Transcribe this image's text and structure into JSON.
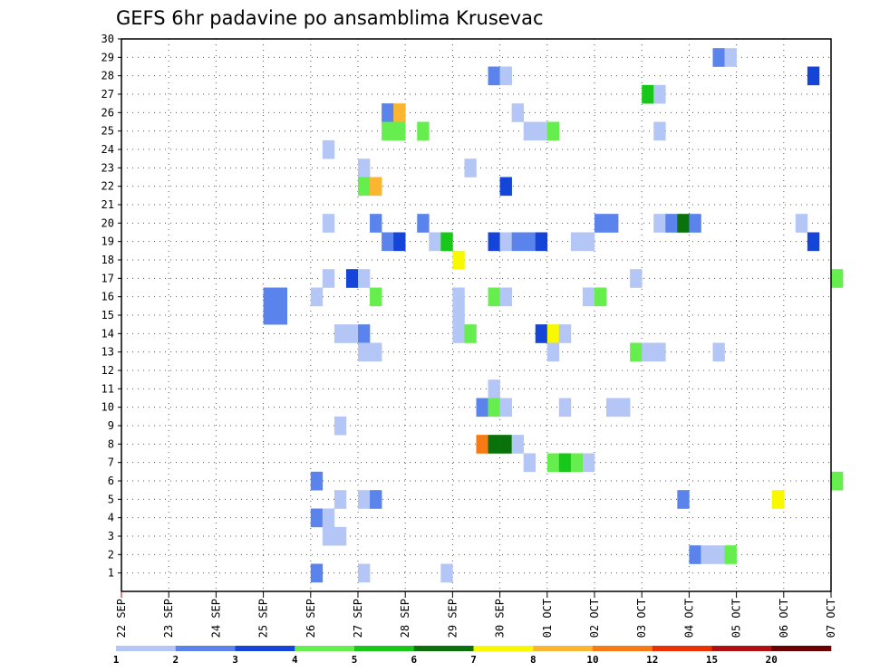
{
  "chart_data": {
    "type": "heatmap",
    "title": "GEFS 6hr padavine po ansamblima Krusevac",
    "xlabel": "",
    "ylabel": "",
    "x_range_hours": [
      0,
      360
    ],
    "x_ticks": [
      {
        "hour": 0,
        "label": "22 SEP"
      },
      {
        "hour": 24,
        "label": "23 SEP"
      },
      {
        "hour": 48,
        "label": "24 SEP"
      },
      {
        "hour": 72,
        "label": "25 SEP"
      },
      {
        "hour": 96,
        "label": "26 SEP"
      },
      {
        "hour": 120,
        "label": "27 SEP"
      },
      {
        "hour": 144,
        "label": "28 SEP"
      },
      {
        "hour": 168,
        "label": "29 SEP"
      },
      {
        "hour": 192,
        "label": "30 SEP"
      },
      {
        "hour": 216,
        "label": "01 OCT"
      },
      {
        "hour": 240,
        "label": "02 OCT"
      },
      {
        "hour": 264,
        "label": "03 OCT"
      },
      {
        "hour": 288,
        "label": "04 OCT"
      },
      {
        "hour": 312,
        "label": "05 OCT"
      },
      {
        "hour": 336,
        "label": "06 OCT"
      },
      {
        "hour": 360,
        "label": "07 OCT"
      }
    ],
    "y_range": [
      0,
      30
    ],
    "y_ticks": [
      "1",
      "2",
      "3",
      "4",
      "5",
      "6",
      "7",
      "8",
      "9",
      "10",
      "11",
      "12",
      "13",
      "14",
      "15",
      "16",
      "17",
      "18",
      "19",
      "20",
      "21",
      "22",
      "23",
      "24",
      "25",
      "26",
      "27",
      "28",
      "29",
      "30"
    ],
    "grid": true,
    "legend": {
      "placement": "bottom",
      "bins": [
        {
          "label": "1",
          "color": "#b4c6f5"
        },
        {
          "label": "2",
          "color": "#5a84ec"
        },
        {
          "label": "3",
          "color": "#1444d8"
        },
        {
          "label": "4",
          "color": "#66ee4e"
        },
        {
          "label": "5",
          "color": "#18c818"
        },
        {
          "label": "6",
          "color": "#0a720a"
        },
        {
          "label": "7",
          "color": "#f8f800"
        },
        {
          "label": "8",
          "color": "#fbb530"
        },
        {
          "label": "10",
          "color": "#f87a14"
        },
        {
          "label": "12",
          "color": "#ec3000"
        },
        {
          "label": "15",
          "color": "#b01010"
        },
        {
          "label": "20",
          "color": "#6a0000"
        }
      ]
    },
    "cells_hours_member_binindex": [
      [
        300,
        29,
        1
      ],
      [
        306,
        29,
        0
      ],
      [
        186,
        28,
        1
      ],
      [
        192,
        28,
        0
      ],
      [
        348,
        28,
        2
      ],
      [
        264,
        27,
        4
      ],
      [
        270,
        27,
        0
      ],
      [
        132,
        26,
        1
      ],
      [
        138,
        26,
        7
      ],
      [
        198,
        26,
        0
      ],
      [
        132,
        25,
        3
      ],
      [
        138,
        25,
        3
      ],
      [
        150,
        25,
        3
      ],
      [
        204,
        25,
        0
      ],
      [
        210,
        25,
        0
      ],
      [
        216,
        25,
        3
      ],
      [
        270,
        25,
        0
      ],
      [
        102,
        24,
        0
      ],
      [
        120,
        23,
        0
      ],
      [
        174,
        23,
        0
      ],
      [
        120,
        22,
        3
      ],
      [
        126,
        22,
        7
      ],
      [
        192,
        22,
        2
      ],
      [
        102,
        20,
        0
      ],
      [
        126,
        20,
        1
      ],
      [
        150,
        20,
        1
      ],
      [
        240,
        20,
        1
      ],
      [
        246,
        20,
        1
      ],
      [
        270,
        20,
        0
      ],
      [
        276,
        20,
        1
      ],
      [
        282,
        20,
        5
      ],
      [
        288,
        20,
        1
      ],
      [
        342,
        20,
        0
      ],
      [
        132,
        19,
        1
      ],
      [
        138,
        19,
        2
      ],
      [
        156,
        19,
        0
      ],
      [
        162,
        19,
        4
      ],
      [
        186,
        19,
        2
      ],
      [
        192,
        19,
        0
      ],
      [
        198,
        19,
        1
      ],
      [
        204,
        19,
        1
      ],
      [
        210,
        19,
        2
      ],
      [
        228,
        19,
        0
      ],
      [
        234,
        19,
        0
      ],
      [
        348,
        19,
        2
      ],
      [
        168,
        18,
        6
      ],
      [
        102,
        17,
        0
      ],
      [
        114,
        17,
        2
      ],
      [
        120,
        17,
        0
      ],
      [
        258,
        17,
        0
      ],
      [
        360,
        17,
        3
      ],
      [
        72,
        16,
        1
      ],
      [
        78,
        16,
        1
      ],
      [
        96,
        16,
        0
      ],
      [
        126,
        16,
        3
      ],
      [
        168,
        16,
        0
      ],
      [
        186,
        16,
        3
      ],
      [
        192,
        16,
        0
      ],
      [
        234,
        16,
        0
      ],
      [
        240,
        16,
        3
      ],
      [
        72,
        15,
        1
      ],
      [
        78,
        15,
        1
      ],
      [
        168,
        15,
        0
      ],
      [
        108,
        14,
        0
      ],
      [
        114,
        14,
        0
      ],
      [
        120,
        14,
        1
      ],
      [
        168,
        14,
        0
      ],
      [
        174,
        14,
        3
      ],
      [
        210,
        14,
        2
      ],
      [
        216,
        14,
        6
      ],
      [
        222,
        14,
        0
      ],
      [
        120,
        13,
        0
      ],
      [
        126,
        13,
        0
      ],
      [
        216,
        13,
        0
      ],
      [
        258,
        13,
        3
      ],
      [
        264,
        13,
        0
      ],
      [
        270,
        13,
        0
      ],
      [
        300,
        13,
        0
      ],
      [
        186,
        11,
        0
      ],
      [
        180,
        10,
        1
      ],
      [
        186,
        10,
        3
      ],
      [
        192,
        10,
        0
      ],
      [
        222,
        10,
        0
      ],
      [
        246,
        10,
        0
      ],
      [
        252,
        10,
        0
      ],
      [
        108,
        9,
        0
      ],
      [
        180,
        8,
        8
      ],
      [
        186,
        8,
        5
      ],
      [
        192,
        8,
        5
      ],
      [
        198,
        8,
        0
      ],
      [
        204,
        7,
        0
      ],
      [
        216,
        7,
        3
      ],
      [
        222,
        7,
        4
      ],
      [
        228,
        7,
        3
      ],
      [
        234,
        7,
        0
      ],
      [
        96,
        6,
        1
      ],
      [
        360,
        6,
        3
      ],
      [
        108,
        5,
        0
      ],
      [
        120,
        5,
        0
      ],
      [
        126,
        5,
        1
      ],
      [
        282,
        5,
        1
      ],
      [
        330,
        5,
        6
      ],
      [
        96,
        4,
        1
      ],
      [
        102,
        4,
        0
      ],
      [
        102,
        3,
        0
      ],
      [
        108,
        3,
        0
      ],
      [
        288,
        2,
        1
      ],
      [
        294,
        2,
        0
      ],
      [
        300,
        2,
        0
      ],
      [
        306,
        2,
        3
      ],
      [
        96,
        1,
        1
      ],
      [
        120,
        1,
        0
      ],
      [
        162,
        1,
        0
      ]
    ]
  }
}
